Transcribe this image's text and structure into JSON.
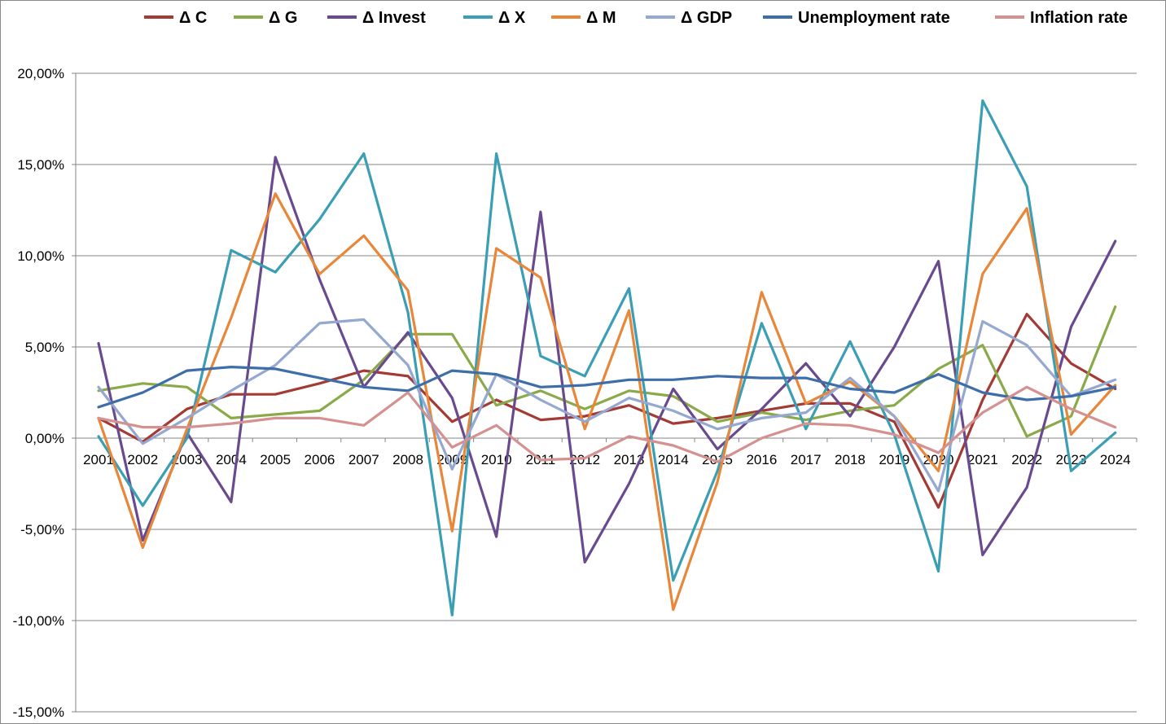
{
  "chart_data": {
    "type": "line",
    "categories": [
      "2001",
      "2002",
      "2003",
      "2004",
      "2005",
      "2006",
      "2007",
      "2008",
      "2009",
      "2010",
      "2011",
      "2012",
      "2013",
      "2014",
      "2015",
      "2016",
      "2017",
      "2018",
      "2019",
      "2020",
      "2021",
      "2022",
      "2023",
      "2024"
    ],
    "ylim": [
      -15,
      20
    ],
    "yticks": [
      20,
      15,
      10,
      5,
      0,
      -5,
      -10,
      -15
    ],
    "ytick_labels": [
      "20,00%",
      "15,00%",
      "10,00%",
      "5,00%",
      "0,00%",
      "-5,00%",
      "-10,00%",
      "-15,00%"
    ],
    "grid": true,
    "legend_position": "top",
    "series": [
      {
        "name": "Δ C",
        "color": "#A33A33",
        "values": [
          1.1,
          -0.2,
          1.6,
          2.4,
          2.4,
          3.0,
          3.7,
          3.4,
          0.9,
          2.1,
          1.0,
          1.2,
          1.8,
          0.8,
          1.1,
          1.5,
          1.9,
          1.9,
          0.9,
          -3.8,
          2.1,
          6.8,
          4.1,
          2.7
        ]
      },
      {
        "name": "Δ G",
        "color": "#8AAA4A",
        "values": [
          2.6,
          3.0,
          2.8,
          1.1,
          1.3,
          1.5,
          3.2,
          5.7,
          5.7,
          1.8,
          2.6,
          1.6,
          2.6,
          2.3,
          0.9,
          1.4,
          1.0,
          1.5,
          1.8,
          3.8,
          5.1,
          0.1,
          1.2,
          7.2
        ]
      },
      {
        "name": "Δ Invest",
        "color": "#6A4A8E",
        "values": [
          5.2,
          -5.6,
          0.3,
          -3.5,
          15.4,
          8.7,
          2.8,
          5.8,
          2.2,
          -5.4,
          12.4,
          -6.8,
          -2.5,
          2.7,
          -0.6,
          1.6,
          4.1,
          1.2,
          5.0,
          9.7,
          -6.4,
          -2.7,
          6.1,
          10.8
        ]
      },
      {
        "name": "Δ X",
        "color": "#3A9EB4",
        "values": [
          0.1,
          -3.7,
          0.0,
          10.3,
          9.1,
          12.0,
          15.6,
          6.9,
          -9.7,
          15.6,
          4.5,
          3.4,
          8.2,
          -7.8,
          -1.8,
          6.3,
          0.5,
          5.3,
          0.2,
          -7.3,
          18.5,
          13.8,
          -1.8,
          0.3
        ]
      },
      {
        "name": "Δ M",
        "color": "#E8873A",
        "values": [
          1.1,
          -6.0,
          0.5,
          6.6,
          13.4,
          9.0,
          11.1,
          8.1,
          -5.1,
          10.4,
          8.8,
          0.5,
          7.0,
          -9.4,
          -2.4,
          8.0,
          1.9,
          3.1,
          1.2,
          -1.8,
          9.0,
          12.6,
          0.2,
          2.9
        ]
      },
      {
        "name": "Δ GDP",
        "color": "#94A8D0",
        "values": [
          2.8,
          -0.3,
          1.1,
          2.6,
          4.0,
          6.3,
          6.5,
          4.0,
          -1.7,
          3.5,
          2.1,
          0.9,
          2.2,
          1.5,
          0.5,
          1.1,
          1.4,
          3.3,
          1.2,
          -2.9,
          6.4,
          5.1,
          2.3,
          3.2
        ]
      },
      {
        "name": "Unemployment rate",
        "color": "#3E6EA8",
        "values": [
          1.7,
          2.5,
          3.7,
          3.9,
          3.8,
          3.3,
          2.8,
          2.6,
          3.7,
          3.5,
          2.8,
          2.9,
          3.2,
          3.2,
          3.4,
          3.3,
          3.3,
          2.7,
          2.5,
          3.5,
          2.5,
          2.1,
          2.3,
          2.8
        ]
      },
      {
        "name": "Inflation rate",
        "color": "#D49190",
        "values": [
          1.1,
          0.6,
          0.6,
          0.8,
          1.1,
          1.1,
          0.7,
          2.5,
          -0.5,
          0.7,
          -1.2,
          -1.1,
          0.1,
          -0.4,
          -1.3,
          0.0,
          0.8,
          0.7,
          0.2,
          -0.8,
          1.4,
          2.8,
          1.6,
          0.6
        ]
      }
    ]
  }
}
